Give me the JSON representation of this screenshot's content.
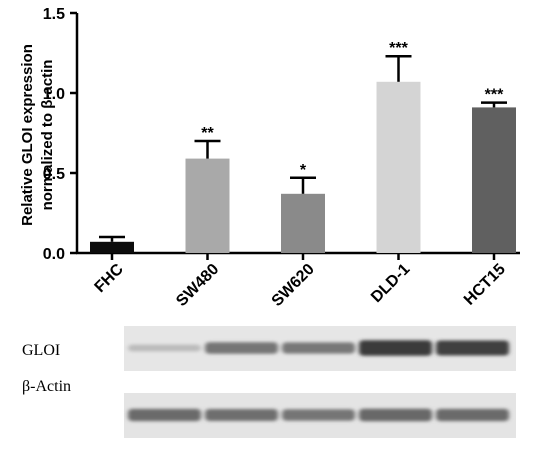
{
  "chart_data": {
    "type": "bar",
    "title": "",
    "ylabel_lines": [
      "Relative GLOI expression",
      "normalized to β-actin"
    ],
    "xlabel": "",
    "ylim": [
      0,
      1.5
    ],
    "yticks": [
      0.0,
      0.5,
      1.0,
      1.5
    ],
    "ytick_labels": [
      "0.0",
      "0.5",
      "1.0",
      "1.5"
    ],
    "categories": [
      "FHC",
      "SW480",
      "SW620",
      "DLD-1",
      "HCT15"
    ],
    "values": [
      0.07,
      0.59,
      0.37,
      1.07,
      0.91
    ],
    "errors": [
      0.03,
      0.11,
      0.1,
      0.16,
      0.03
    ],
    "significance": [
      "",
      "**",
      "*",
      "***",
      "***"
    ],
    "colors": [
      "#0c0c0c",
      "#a9a9a9",
      "#8a8a8a",
      "#d4d4d4",
      "#606060"
    ],
    "grid": false,
    "legend": "none"
  },
  "blot": {
    "rows": [
      {
        "label": "GLOI",
        "intensities": [
          0.22,
          0.62,
          0.6,
          0.95,
          0.92
        ]
      },
      {
        "label": "β-Actin",
        "intensities": [
          0.68,
          0.66,
          0.62,
          0.7,
          0.68
        ]
      }
    ]
  }
}
